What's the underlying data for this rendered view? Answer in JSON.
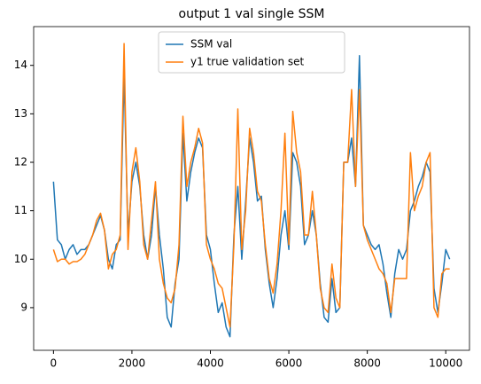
{
  "chart_data": {
    "type": "line",
    "title": "output 1 val single SSM",
    "x": [
      0,
      100,
      200,
      300,
      400,
      500,
      600,
      700,
      800,
      900,
      1000,
      1100,
      1200,
      1300,
      1400,
      1500,
      1600,
      1700,
      1800,
      1900,
      2000,
      2100,
      2200,
      2300,
      2400,
      2500,
      2600,
      2700,
      2800,
      2900,
      3000,
      3100,
      3200,
      3300,
      3400,
      3500,
      3600,
      3700,
      3800,
      3900,
      4000,
      4100,
      4200,
      4300,
      4400,
      4500,
      4600,
      4700,
      4800,
      4900,
      5000,
      5100,
      5200,
      5300,
      5400,
      5500,
      5600,
      5700,
      5800,
      5900,
      6000,
      6100,
      6200,
      6300,
      6400,
      6500,
      6600,
      6700,
      6800,
      6900,
      7000,
      7100,
      7200,
      7300,
      7400,
      7500,
      7600,
      7700,
      7800,
      7900,
      8000,
      8100,
      8200,
      8300,
      8400,
      8500,
      8600,
      8700,
      8800,
      8900,
      9000,
      9100,
      9200,
      9300,
      9400,
      9500,
      9600,
      9700,
      9800,
      9900,
      10000,
      10100
    ],
    "series": [
      {
        "name": "SSM val",
        "color": "#1f77b4",
        "values": [
          11.6,
          10.4,
          10.3,
          10.0,
          10.2,
          10.3,
          10.1,
          10.2,
          10.2,
          10.3,
          10.5,
          10.7,
          10.9,
          10.6,
          10.0,
          9.8,
          10.3,
          10.4,
          13.8,
          10.5,
          11.6,
          12.0,
          11.5,
          10.5,
          10.0,
          10.5,
          11.5,
          10.5,
          9.8,
          8.8,
          8.6,
          9.5,
          10.0,
          12.6,
          11.2,
          11.8,
          12.2,
          12.5,
          12.3,
          10.5,
          10.2,
          9.5,
          8.9,
          9.1,
          8.6,
          8.4,
          10.5,
          11.5,
          10.0,
          11.2,
          12.5,
          12.0,
          11.2,
          11.3,
          10.2,
          9.5,
          9.0,
          9.6,
          10.5,
          11.0,
          10.2,
          12.2,
          12.0,
          11.5,
          10.3,
          10.5,
          11.0,
          10.5,
          9.5,
          8.8,
          8.7,
          9.6,
          8.9,
          9.0,
          12.0,
          12.0,
          12.5,
          11.5,
          14.2,
          10.7,
          10.5,
          10.3,
          10.2,
          10.3,
          9.9,
          9.3,
          8.8,
          9.7,
          10.2,
          10.0,
          10.2,
          11.0,
          11.2,
          11.5,
          11.7,
          12.0,
          11.8,
          9.4,
          8.9,
          9.5,
          10.2,
          10.0
        ]
      },
      {
        "name": "y1 true validation set",
        "color": "#ff7f0e",
        "values": [
          10.2,
          9.95,
          10.0,
          10.0,
          9.9,
          9.95,
          9.95,
          10.0,
          10.1,
          10.3,
          10.5,
          10.8,
          10.95,
          10.6,
          9.8,
          10.1,
          10.2,
          10.5,
          14.45,
          10.2,
          11.8,
          12.3,
          11.6,
          10.3,
          10.0,
          10.8,
          11.6,
          10.0,
          9.5,
          9.2,
          9.1,
          9.4,
          10.3,
          12.95,
          11.5,
          12.0,
          12.3,
          12.7,
          12.4,
          10.3,
          10.0,
          9.8,
          9.5,
          9.4,
          9.0,
          8.6,
          10.3,
          13.1,
          10.2,
          11.0,
          12.7,
          12.2,
          11.4,
          11.2,
          10.3,
          9.6,
          9.3,
          9.9,
          11.0,
          12.6,
          10.3,
          13.05,
          12.2,
          11.8,
          10.5,
          10.5,
          11.4,
          10.5,
          9.4,
          9.0,
          8.9,
          9.9,
          9.2,
          9.0,
          12.0,
          12.0,
          13.5,
          11.5,
          13.5,
          10.7,
          10.4,
          10.2,
          10.0,
          9.8,
          9.7,
          9.5,
          8.9,
          9.6,
          9.6,
          9.6,
          9.6,
          12.2,
          11.0,
          11.3,
          11.5,
          12.0,
          12.2,
          9.0,
          8.8,
          9.7,
          9.8,
          9.8
        ]
      }
    ],
    "xlim": [
      -505,
      10605
    ],
    "xticks": [
      0,
      2000,
      4000,
      6000,
      8000,
      10000
    ],
    "ylim": [
      8.12,
      14.8
    ],
    "yticks": [
      9,
      10,
      11,
      12,
      13,
      14
    ],
    "legend": "upper center"
  }
}
